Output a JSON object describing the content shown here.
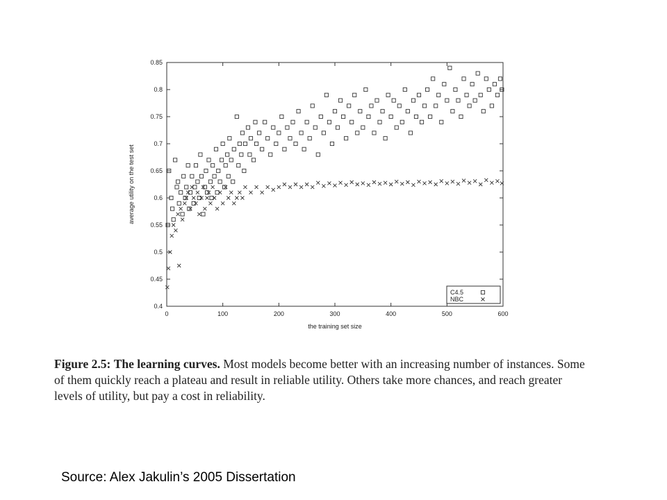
{
  "chart_data": {
    "type": "scatter",
    "xlabel": "the training set size",
    "ylabel": "average utility on the test set",
    "xlim": [
      0,
      600
    ],
    "ylim": [
      0.4,
      0.85
    ],
    "x_ticks": [
      0,
      100,
      200,
      300,
      400,
      500,
      600
    ],
    "y_ticks": [
      0.4,
      0.45,
      0.5,
      0.55,
      0.6,
      0.65,
      0.7,
      0.75,
      0.8,
      0.85
    ],
    "x_tick_labels": [
      "0",
      "100",
      "200",
      "300",
      "400",
      "500",
      "600"
    ],
    "y_tick_labels": [
      "0.4",
      "0.45",
      "0.5",
      "0.55",
      "0.6",
      "0.65",
      "0.7",
      "0.75",
      "0.8",
      "0.85"
    ],
    "legend_position": "bottom-right",
    "series": [
      {
        "name": "C4.5",
        "marker": "square",
        "points": [
          [
            2,
            0.55
          ],
          [
            4,
            0.65
          ],
          [
            8,
            0.6
          ],
          [
            10,
            0.58
          ],
          [
            12,
            0.56
          ],
          [
            15,
            0.67
          ],
          [
            18,
            0.62
          ],
          [
            20,
            0.63
          ],
          [
            22,
            0.59
          ],
          [
            25,
            0.61
          ],
          [
            28,
            0.57
          ],
          [
            30,
            0.64
          ],
          [
            33,
            0.6
          ],
          [
            35,
            0.62
          ],
          [
            38,
            0.66
          ],
          [
            40,
            0.58
          ],
          [
            42,
            0.61
          ],
          [
            45,
            0.64
          ],
          [
            48,
            0.59
          ],
          [
            50,
            0.62
          ],
          [
            52,
            0.66
          ],
          [
            55,
            0.63
          ],
          [
            58,
            0.6
          ],
          [
            60,
            0.68
          ],
          [
            62,
            0.64
          ],
          [
            65,
            0.57
          ],
          [
            68,
            0.62
          ],
          [
            70,
            0.65
          ],
          [
            72,
            0.61
          ],
          [
            75,
            0.67
          ],
          [
            78,
            0.63
          ],
          [
            80,
            0.6
          ],
          [
            82,
            0.66
          ],
          [
            85,
            0.64
          ],
          [
            88,
            0.69
          ],
          [
            90,
            0.61
          ],
          [
            92,
            0.65
          ],
          [
            95,
            0.63
          ],
          [
            98,
            0.67
          ],
          [
            100,
            0.7
          ],
          [
            103,
            0.62
          ],
          [
            105,
            0.66
          ],
          [
            108,
            0.68
          ],
          [
            110,
            0.64
          ],
          [
            112,
            0.71
          ],
          [
            115,
            0.67
          ],
          [
            118,
            0.63
          ],
          [
            120,
            0.69
          ],
          [
            125,
            0.75
          ],
          [
            128,
            0.66
          ],
          [
            130,
            0.7
          ],
          [
            133,
            0.68
          ],
          [
            135,
            0.72
          ],
          [
            138,
            0.65
          ],
          [
            140,
            0.7
          ],
          [
            145,
            0.73
          ],
          [
            148,
            0.68
          ],
          [
            150,
            0.71
          ],
          [
            155,
            0.67
          ],
          [
            158,
            0.74
          ],
          [
            160,
            0.7
          ],
          [
            165,
            0.72
          ],
          [
            170,
            0.69
          ],
          [
            175,
            0.74
          ],
          [
            180,
            0.71
          ],
          [
            185,
            0.68
          ],
          [
            190,
            0.73
          ],
          [
            195,
            0.7
          ],
          [
            200,
            0.72
          ],
          [
            205,
            0.75
          ],
          [
            210,
            0.69
          ],
          [
            215,
            0.73
          ],
          [
            220,
            0.71
          ],
          [
            225,
            0.74
          ],
          [
            230,
            0.7
          ],
          [
            235,
            0.76
          ],
          [
            240,
            0.72
          ],
          [
            245,
            0.69
          ],
          [
            250,
            0.74
          ],
          [
            255,
            0.71
          ],
          [
            260,
            0.77
          ],
          [
            265,
            0.73
          ],
          [
            270,
            0.68
          ],
          [
            275,
            0.75
          ],
          [
            280,
            0.72
          ],
          [
            285,
            0.79
          ],
          [
            290,
            0.74
          ],
          [
            295,
            0.7
          ],
          [
            300,
            0.76
          ],
          [
            305,
            0.73
          ],
          [
            310,
            0.78
          ],
          [
            315,
            0.75
          ],
          [
            320,
            0.71
          ],
          [
            325,
            0.77
          ],
          [
            330,
            0.74
          ],
          [
            335,
            0.79
          ],
          [
            340,
            0.72
          ],
          [
            345,
            0.76
          ],
          [
            350,
            0.73
          ],
          [
            355,
            0.8
          ],
          [
            360,
            0.75
          ],
          [
            365,
            0.77
          ],
          [
            370,
            0.72
          ],
          [
            375,
            0.78
          ],
          [
            380,
            0.74
          ],
          [
            385,
            0.76
          ],
          [
            390,
            0.71
          ],
          [
            395,
            0.79
          ],
          [
            400,
            0.75
          ],
          [
            405,
            0.78
          ],
          [
            410,
            0.73
          ],
          [
            415,
            0.77
          ],
          [
            420,
            0.74
          ],
          [
            425,
            0.8
          ],
          [
            430,
            0.76
          ],
          [
            435,
            0.72
          ],
          [
            440,
            0.78
          ],
          [
            445,
            0.75
          ],
          [
            450,
            0.79
          ],
          [
            455,
            0.74
          ],
          [
            460,
            0.77
          ],
          [
            465,
            0.8
          ],
          [
            470,
            0.75
          ],
          [
            475,
            0.82
          ],
          [
            480,
            0.77
          ],
          [
            485,
            0.79
          ],
          [
            490,
            0.74
          ],
          [
            495,
            0.81
          ],
          [
            500,
            0.78
          ],
          [
            505,
            0.84
          ],
          [
            510,
            0.76
          ],
          [
            515,
            0.8
          ],
          [
            520,
            0.78
          ],
          [
            525,
            0.75
          ],
          [
            530,
            0.82
          ],
          [
            535,
            0.79
          ],
          [
            540,
            0.77
          ],
          [
            545,
            0.81
          ],
          [
            550,
            0.78
          ],
          [
            555,
            0.83
          ],
          [
            560,
            0.79
          ],
          [
            565,
            0.76
          ],
          [
            570,
            0.82
          ],
          [
            575,
            0.8
          ],
          [
            580,
            0.77
          ],
          [
            585,
            0.81
          ],
          [
            590,
            0.79
          ],
          [
            595,
            0.82
          ],
          [
            598,
            0.8
          ]
        ]
      },
      {
        "name": "NBC",
        "marker": "cross",
        "points": [
          [
            1,
            0.435
          ],
          [
            3,
            0.47
          ],
          [
            6,
            0.5
          ],
          [
            9,
            0.53
          ],
          [
            12,
            0.55
          ],
          [
            16,
            0.54
          ],
          [
            20,
            0.57
          ],
          [
            22,
            0.475
          ],
          [
            25,
            0.58
          ],
          [
            28,
            0.56
          ],
          [
            32,
            0.59
          ],
          [
            35,
            0.6
          ],
          [
            38,
            0.61
          ],
          [
            42,
            0.58
          ],
          [
            45,
            0.62
          ],
          [
            48,
            0.6
          ],
          [
            52,
            0.59
          ],
          [
            55,
            0.61
          ],
          [
            58,
            0.57
          ],
          [
            62,
            0.6
          ],
          [
            65,
            0.62
          ],
          [
            68,
            0.58
          ],
          [
            72,
            0.6
          ],
          [
            75,
            0.61
          ],
          [
            78,
            0.59
          ],
          [
            82,
            0.62
          ],
          [
            85,
            0.6
          ],
          [
            90,
            0.58
          ],
          [
            95,
            0.61
          ],
          [
            100,
            0.59
          ],
          [
            105,
            0.62
          ],
          [
            110,
            0.6
          ],
          [
            115,
            0.61
          ],
          [
            120,
            0.59
          ],
          [
            125,
            0.6
          ],
          [
            130,
            0.61
          ],
          [
            135,
            0.6
          ],
          [
            140,
            0.62
          ],
          [
            150,
            0.61
          ],
          [
            160,
            0.62
          ],
          [
            170,
            0.61
          ],
          [
            180,
            0.62
          ],
          [
            190,
            0.615
          ],
          [
            200,
            0.62
          ],
          [
            210,
            0.625
          ],
          [
            220,
            0.62
          ],
          [
            230,
            0.625
          ],
          [
            240,
            0.62
          ],
          [
            250,
            0.625
          ],
          [
            260,
            0.62
          ],
          [
            270,
            0.628
          ],
          [
            280,
            0.622
          ],
          [
            290,
            0.627
          ],
          [
            300,
            0.623
          ],
          [
            310,
            0.628
          ],
          [
            320,
            0.624
          ],
          [
            330,
            0.629
          ],
          [
            340,
            0.625
          ],
          [
            350,
            0.627
          ],
          [
            360,
            0.624
          ],
          [
            370,
            0.629
          ],
          [
            380,
            0.626
          ],
          [
            390,
            0.628
          ],
          [
            400,
            0.625
          ],
          [
            410,
            0.63
          ],
          [
            420,
            0.626
          ],
          [
            430,
            0.629
          ],
          [
            440,
            0.624
          ],
          [
            450,
            0.63
          ],
          [
            460,
            0.627
          ],
          [
            470,
            0.629
          ],
          [
            480,
            0.625
          ],
          [
            490,
            0.631
          ],
          [
            500,
            0.627
          ],
          [
            510,
            0.63
          ],
          [
            520,
            0.626
          ],
          [
            530,
            0.632
          ],
          [
            540,
            0.628
          ],
          [
            550,
            0.631
          ],
          [
            560,
            0.625
          ],
          [
            570,
            0.633
          ],
          [
            580,
            0.628
          ],
          [
            590,
            0.631
          ],
          [
            598,
            0.627
          ]
        ]
      }
    ]
  },
  "caption": {
    "label": "Figure 2.5:",
    "title": "The learning curves.",
    "text": "Most models become better with an increasing number of instances. Some of them quickly reach a plateau and result in reliable utility. Others take more chances, and reach greater levels of utility, but pay a cost in reliability."
  },
  "source": "Source: Alex Jakulin’s 2005 Dissertation"
}
